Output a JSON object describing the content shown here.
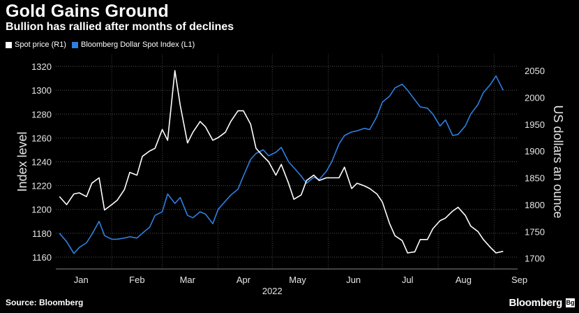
{
  "header": {
    "title": "Gold Gains Ground",
    "subtitle": "Bullion has rallied after months of declines"
  },
  "legend": {
    "items": [
      {
        "label": "Spot price (R1)",
        "color": "#ffffff"
      },
      {
        "label": "Bloomberg Dollar Spot Index (L1)",
        "color": "#2f7fe0"
      }
    ]
  },
  "footer": {
    "source": "Source: Bloomberg",
    "brand": "Bloomberg",
    "brand_mark": "Bg"
  },
  "chart_data": {
    "type": "line",
    "x_ticks": [
      "Jan",
      "Feb",
      "Mar",
      "Apr",
      "May",
      "Jun",
      "Jul",
      "Aug",
      "Sep"
    ],
    "x_sublabel": "2022",
    "left_axis": {
      "label": "Index level",
      "ylim": [
        1150,
        1330
      ],
      "ticks": [
        1160,
        1180,
        1200,
        1220,
        1240,
        1260,
        1280,
        1300,
        1320
      ]
    },
    "right_axis": {
      "label": "US dollars an ounce",
      "ylim": [
        1680,
        2080
      ],
      "ticks": [
        1700,
        1750,
        1800,
        1850,
        1900,
        1950,
        2000,
        2050
      ]
    },
    "grid": true,
    "series": [
      {
        "name": "Bloomberg Dollar Spot Index (L1)",
        "axis": "left",
        "color": "#2f7fe0",
        "x": [
          "2022-01-03",
          "2022-01-07",
          "2022-01-11",
          "2022-01-14",
          "2022-01-18",
          "2022-01-21",
          "2022-01-25",
          "2022-01-28",
          "2022-02-01",
          "2022-02-04",
          "2022-02-08",
          "2022-02-11",
          "2022-02-15",
          "2022-02-18",
          "2022-02-22",
          "2022-02-25",
          "2022-03-01",
          "2022-03-04",
          "2022-03-08",
          "2022-03-11",
          "2022-03-15",
          "2022-03-18",
          "2022-03-22",
          "2022-03-25",
          "2022-03-29",
          "2022-04-01",
          "2022-04-05",
          "2022-04-08",
          "2022-04-12",
          "2022-04-15",
          "2022-04-19",
          "2022-04-22",
          "2022-04-26",
          "2022-04-29",
          "2022-05-03",
          "2022-05-06",
          "2022-05-10",
          "2022-05-13",
          "2022-05-17",
          "2022-05-20",
          "2022-05-24",
          "2022-05-27",
          "2022-05-31",
          "2022-06-03",
          "2022-06-07",
          "2022-06-10",
          "2022-06-14",
          "2022-06-17",
          "2022-06-21",
          "2022-06-24",
          "2022-06-28",
          "2022-07-01",
          "2022-07-05",
          "2022-07-08",
          "2022-07-12",
          "2022-07-15",
          "2022-07-19",
          "2022-07-22",
          "2022-07-26",
          "2022-07-29",
          "2022-08-02",
          "2022-08-05",
          "2022-08-09",
          "2022-08-12",
          "2022-08-16",
          "2022-08-19",
          "2022-08-23",
          "2022-08-26",
          "2022-08-30",
          "2022-09-02",
          "2022-09-06"
        ],
        "values": [
          1180,
          1173,
          1163,
          1168,
          1172,
          1179,
          1190,
          1178,
          1175,
          1175,
          1176,
          1177,
          1176,
          1180,
          1185,
          1195,
          1198,
          1213,
          1205,
          1210,
          1195,
          1193,
          1198,
          1196,
          1188,
          1200,
          1207,
          1212,
          1217,
          1228,
          1242,
          1247,
          1250,
          1245,
          1248,
          1252,
          1240,
          1235,
          1228,
          1222,
          1227,
          1225,
          1232,
          1240,
          1255,
          1262,
          1265,
          1266,
          1268,
          1267,
          1278,
          1290,
          1295,
          1302,
          1305,
          1300,
          1292,
          1286,
          1285,
          1280,
          1270,
          1275,
          1262,
          1263,
          1270,
          1280,
          1288,
          1298,
          1305,
          1312,
          1300
        ]
      },
      {
        "name": "Spot price (R1)",
        "axis": "right",
        "color": "#ffffff",
        "x": [
          "2022-01-03",
          "2022-01-07",
          "2022-01-11",
          "2022-01-14",
          "2022-01-18",
          "2022-01-21",
          "2022-01-25",
          "2022-01-28",
          "2022-02-01",
          "2022-02-04",
          "2022-02-08",
          "2022-02-11",
          "2022-02-15",
          "2022-02-18",
          "2022-02-22",
          "2022-02-25",
          "2022-03-01",
          "2022-03-04",
          "2022-03-08",
          "2022-03-11",
          "2022-03-15",
          "2022-03-18",
          "2022-03-22",
          "2022-03-25",
          "2022-03-29",
          "2022-04-01",
          "2022-04-05",
          "2022-04-08",
          "2022-04-12",
          "2022-04-15",
          "2022-04-19",
          "2022-04-22",
          "2022-04-26",
          "2022-04-29",
          "2022-05-03",
          "2022-05-06",
          "2022-05-10",
          "2022-05-13",
          "2022-05-17",
          "2022-05-20",
          "2022-05-24",
          "2022-05-27",
          "2022-05-31",
          "2022-06-03",
          "2022-06-07",
          "2022-06-10",
          "2022-06-14",
          "2022-06-17",
          "2022-06-21",
          "2022-06-24",
          "2022-06-28",
          "2022-07-01",
          "2022-07-05",
          "2022-07-08",
          "2022-07-12",
          "2022-07-15",
          "2022-07-19",
          "2022-07-22",
          "2022-07-26",
          "2022-07-29",
          "2022-08-02",
          "2022-08-05",
          "2022-08-09",
          "2022-08-12",
          "2022-08-16",
          "2022-08-19",
          "2022-08-23",
          "2022-08-26",
          "2022-08-30",
          "2022-09-02",
          "2022-09-06"
        ],
        "values": [
          1815,
          1800,
          1820,
          1822,
          1815,
          1840,
          1850,
          1790,
          1800,
          1808,
          1828,
          1860,
          1855,
          1890,
          1900,
          1905,
          1940,
          1920,
          2050,
          1985,
          1915,
          1935,
          1955,
          1945,
          1920,
          1925,
          1935,
          1955,
          1975,
          1975,
          1950,
          1905,
          1890,
          1880,
          1855,
          1875,
          1840,
          1810,
          1818,
          1845,
          1855,
          1845,
          1850,
          1850,
          1850,
          1870,
          1830,
          1840,
          1835,
          1830,
          1820,
          1805,
          1765,
          1742,
          1733,
          1710,
          1712,
          1735,
          1735,
          1755,
          1770,
          1775,
          1788,
          1795,
          1780,
          1760,
          1750,
          1735,
          1720,
          1710,
          1713
        ]
      }
    ]
  }
}
